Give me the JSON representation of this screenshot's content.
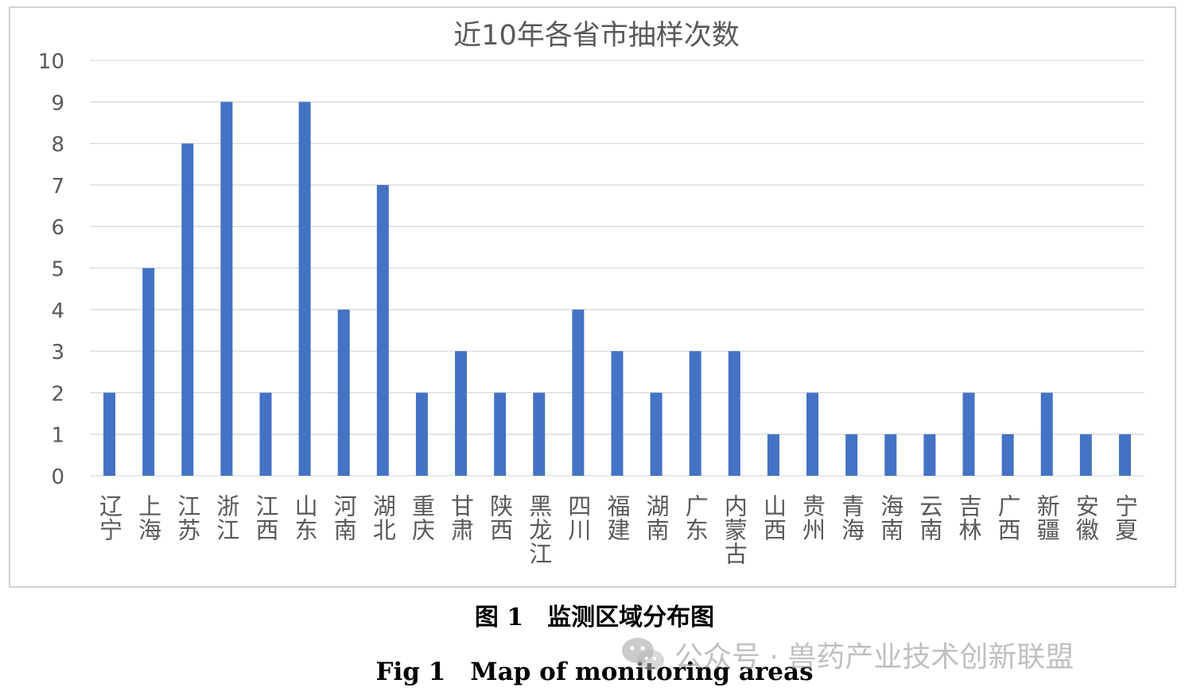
{
  "chart_data": {
    "type": "bar",
    "title": "近10年各省市抽样次数",
    "categories": [
      "辽宁",
      "上海",
      "江苏",
      "浙江",
      "江西",
      "山东",
      "河南",
      "湖北",
      "重庆",
      "甘肃",
      "陕西",
      "黑龙江",
      "四川",
      "福建",
      "湖南",
      "广东",
      "内蒙古",
      "山西",
      "贵州",
      "青海",
      "海南",
      "云南",
      "吉林",
      "广西",
      "新疆",
      "安徽",
      "宁夏"
    ],
    "values": [
      2,
      5,
      8,
      9,
      2,
      9,
      4,
      7,
      2,
      3,
      2,
      2,
      4,
      3,
      2,
      3,
      3,
      1,
      2,
      1,
      1,
      1,
      2,
      1,
      2,
      1,
      1
    ],
    "yticks": [
      "0",
      "1",
      "2",
      "3",
      "4",
      "5",
      "6",
      "7",
      "8",
      "9",
      "10"
    ],
    "ylim": [
      0,
      10
    ],
    "xlabel": "",
    "ylabel": "",
    "grid": true,
    "legend": "none",
    "bar_color": "#4472c4",
    "grid_color": "#d9d9d9",
    "text_color": "#595959"
  },
  "figure": {
    "caption_cn": "图 1　监测区域分布图",
    "caption_en": "Fig 1　Map of monitoring areas"
  },
  "watermark": {
    "text": "公众号 · 兽药产业技术创新联盟",
    "icon": "wechat-icon"
  }
}
